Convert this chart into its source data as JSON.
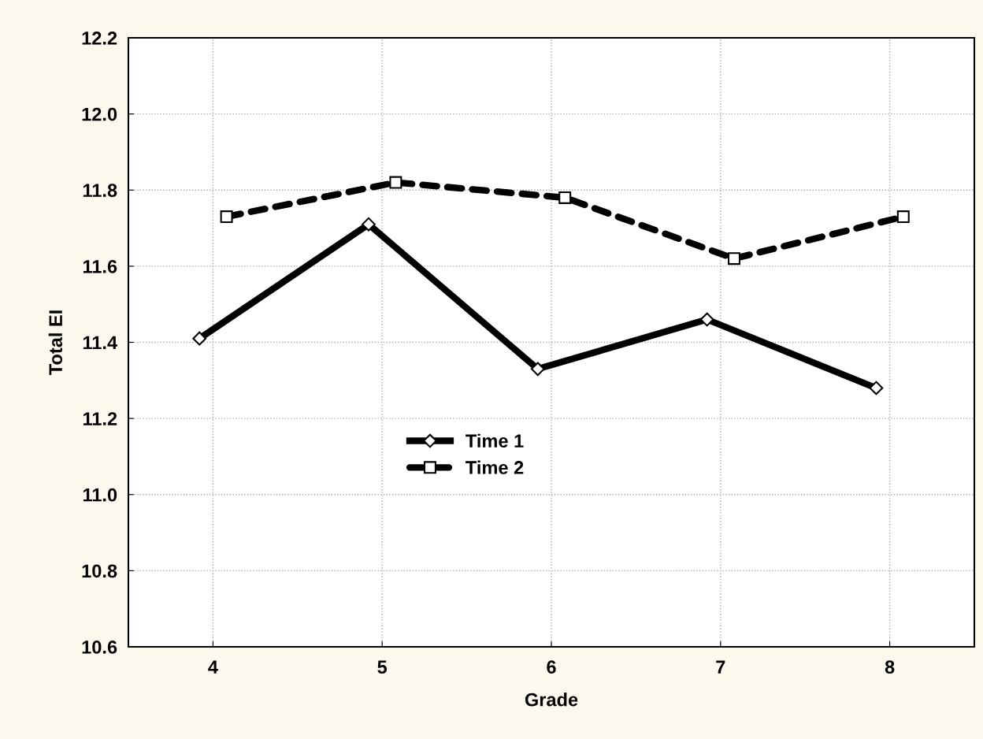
{
  "chart_data": {
    "type": "line",
    "xlabel": "Grade",
    "ylabel": "Total EI",
    "xlim": [
      3.5,
      8.5
    ],
    "xticks": [
      4,
      5,
      6,
      7,
      8
    ],
    "ylim": [
      10.6,
      12.2
    ],
    "yticks": [
      {
        "value": 10.6,
        "label": "10.6"
      },
      {
        "value": 10.8,
        "label": "10.8"
      },
      {
        "value": 11.0,
        "label": "11.0"
      },
      {
        "value": 11.2,
        "label": "11.2"
      },
      {
        "value": 11.4,
        "label": "11.4"
      },
      {
        "value": 11.6,
        "label": "11.6"
      },
      {
        "value": 11.8,
        "label": "11.8"
      },
      {
        "value": 12.0,
        "label": "12.0"
      },
      {
        "value": 12.2,
        "label": "12.2"
      }
    ],
    "grid": true,
    "legend": "bottom",
    "series": [
      {
        "name": "Time 1",
        "color": "#000000",
        "marker": "diamond",
        "line_style": "solid",
        "x": [
          3.92,
          4.92,
          5.92,
          6.92,
          7.92
        ],
        "values": [
          11.41,
          11.71,
          11.33,
          11.46,
          11.28
        ]
      },
      {
        "name": "Time 2",
        "color": "#000000",
        "marker": "square",
        "line_style": "dashed",
        "x": [
          4.08,
          5.08,
          6.08,
          7.08,
          8.08
        ],
        "values": [
          11.73,
          11.82,
          11.78,
          11.62,
          11.73
        ]
      }
    ]
  }
}
